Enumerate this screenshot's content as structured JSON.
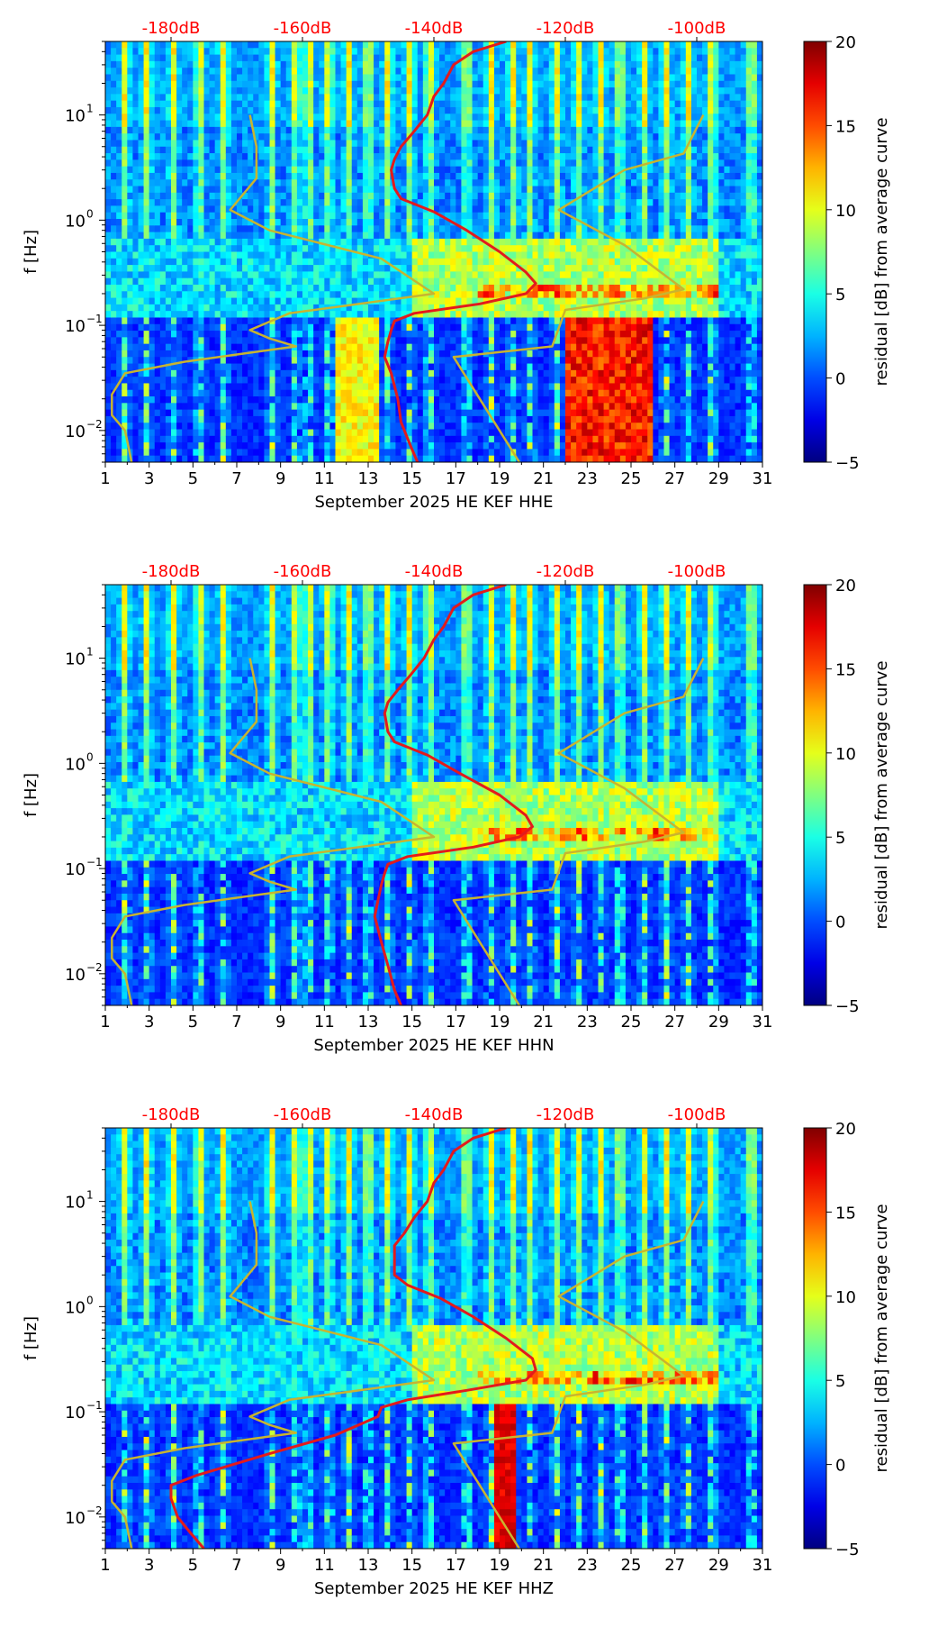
{
  "figure": {
    "colors": {
      "db_axis": "#ff0000",
      "psd_curve": "#e31a1c",
      "noise_model": "#c8b430",
      "axis": "#000000",
      "text": "#000000"
    }
  },
  "chart_data": [
    {
      "type": "heatmap",
      "xlabel": "September 2025 HE KEF  HHE",
      "ylabel": "f [Hz]",
      "x_ticks": [
        "1",
        "3",
        "5",
        "7",
        "9",
        "11",
        "13",
        "15",
        "17",
        "19",
        "21",
        "23",
        "25",
        "27",
        "29",
        "31"
      ],
      "x_range": [
        1,
        31
      ],
      "y_scale": "log",
      "y_range": [
        0.005,
        50
      ],
      "y_ticks": [
        0.01,
        0.1,
        1,
        10
      ],
      "y_tick_labels": [
        "10",
        "10",
        "10",
        "10"
      ],
      "y_tick_exponents": [
        "−2",
        "−1",
        "0",
        "1"
      ],
      "top_axis": {
        "labels": [
          "-180dB",
          "-160dB",
          "-140dB",
          "-120dB",
          "-100dB"
        ],
        "values": [
          -180,
          -160,
          -140,
          -120,
          -100
        ],
        "range": [
          -190,
          -90
        ],
        "color": "#ff0000"
      },
      "colorbar": {
        "label": "residual [dB] from average curve",
        "ticks": [
          "20",
          "15",
          "10",
          "5",
          "0",
          "−5"
        ],
        "tick_values": [
          20,
          15,
          10,
          5,
          0,
          -5
        ],
        "range": [
          -5,
          20
        ],
        "colormap": "jet"
      },
      "series": [
        {
          "color": "#e31a1c",
          "units": "dB",
          "points": [
            [
              -129,
              50
            ],
            [
              -134,
              40
            ],
            [
              -137,
              30
            ],
            [
              -138.5,
              20
            ],
            [
              -140,
              15
            ],
            [
              -141,
              10
            ],
            [
              -143,
              7
            ],
            [
              -145,
              5
            ],
            [
              -146,
              3.8
            ],
            [
              -146.5,
              3
            ],
            [
              -146,
              2
            ],
            [
              -145,
              1.6
            ],
            [
              -140,
              1.2
            ],
            [
              -135,
              0.8
            ],
            [
              -130,
              0.5
            ],
            [
              -126,
              0.32
            ],
            [
              -124.5,
              0.25
            ],
            [
              -126,
              0.2
            ],
            [
              -133,
              0.16
            ],
            [
              -143,
              0.13
            ],
            [
              -146,
              0.11
            ],
            [
              -146.5,
              0.09
            ],
            [
              -147,
              0.07
            ],
            [
              -147.5,
              0.05
            ],
            [
              -146.5,
              0.035
            ],
            [
              -145.5,
              0.02
            ],
            [
              -145,
              0.012
            ],
            [
              -143.5,
              0.007
            ],
            [
              -142.5,
              0.005
            ]
          ]
        },
        {
          "color": "#c8b430",
          "units": "dB",
          "points": [
            [
              -168,
              10
            ],
            [
              -167,
              5
            ],
            [
              -167,
              2.5
            ],
            [
              -171,
              1.25
            ],
            [
              -165,
              0.8
            ],
            [
              -148,
              0.43
            ],
            [
              -140,
              0.2
            ],
            [
              -162,
              0.13
            ],
            [
              -168,
              0.09
            ],
            [
              -165,
              0.075
            ],
            [
              -161,
              0.063
            ],
            [
              -178,
              0.045
            ],
            [
              -187,
              0.035
            ],
            [
              -189,
              0.022
            ],
            [
              -189,
              0.014
            ],
            [
              -187,
              0.01
            ],
            [
              -186,
              0.005
            ]
          ]
        },
        {
          "color": "#c8b430",
          "units": "dB",
          "points": [
            [
              -99,
              10
            ],
            [
              -102,
              4.3
            ],
            [
              -111,
              3
            ],
            [
              -121,
              1.25
            ],
            [
              -111,
              0.58
            ],
            [
              -102,
              0.22
            ],
            [
              -108,
              0.18
            ],
            [
              -120,
              0.14
            ],
            [
              -122,
              0.063
            ],
            [
              -137,
              0.05
            ],
            [
              -127,
              0.005
            ]
          ]
        }
      ]
    },
    {
      "type": "heatmap",
      "xlabel": "September 2025 HE KEF  HHN",
      "ylabel": "f [Hz]",
      "x_ticks": [
        "1",
        "3",
        "5",
        "7",
        "9",
        "11",
        "13",
        "15",
        "17",
        "19",
        "21",
        "23",
        "25",
        "27",
        "29",
        "31"
      ],
      "x_range": [
        1,
        31
      ],
      "y_scale": "log",
      "y_range": [
        0.005,
        50
      ],
      "y_ticks": [
        0.01,
        0.1,
        1,
        10
      ],
      "y_tick_labels": [
        "10",
        "10",
        "10",
        "10"
      ],
      "y_tick_exponents": [
        "−2",
        "−1",
        "0",
        "1"
      ],
      "top_axis": {
        "labels": [
          "-180dB",
          "-160dB",
          "-140dB",
          "-120dB",
          "-100dB"
        ],
        "values": [
          -180,
          -160,
          -140,
          -120,
          -100
        ],
        "range": [
          -190,
          -90
        ],
        "color": "#ff0000"
      },
      "colorbar": {
        "label": "residual [dB] from average curve",
        "ticks": [
          "20",
          "15",
          "10",
          "5",
          "0",
          "−5"
        ],
        "tick_values": [
          20,
          15,
          10,
          5,
          0,
          -5
        ],
        "range": [
          -5,
          20
        ],
        "colormap": "jet"
      },
      "series": [
        {
          "color": "#e31a1c",
          "units": "dB",
          "points": [
            [
              -129,
              50
            ],
            [
              -134,
              40
            ],
            [
              -137,
              30
            ],
            [
              -138.5,
              20
            ],
            [
              -140,
              15
            ],
            [
              -141.5,
              10
            ],
            [
              -143.5,
              7
            ],
            [
              -145.5,
              5
            ],
            [
              -147,
              3.8
            ],
            [
              -147.5,
              3
            ],
            [
              -147,
              2
            ],
            [
              -146,
              1.6
            ],
            [
              -141,
              1.2
            ],
            [
              -136,
              0.8
            ],
            [
              -130,
              0.5
            ],
            [
              -126,
              0.32
            ],
            [
              -125,
              0.25
            ],
            [
              -127,
              0.2
            ],
            [
              -134,
              0.16
            ],
            [
              -144,
              0.13
            ],
            [
              -147,
              0.11
            ],
            [
              -147.5,
              0.09
            ],
            [
              -148,
              0.07
            ],
            [
              -148.5,
              0.05
            ],
            [
              -149,
              0.035
            ],
            [
              -148,
              0.02
            ],
            [
              -147,
              0.012
            ],
            [
              -146,
              0.007
            ],
            [
              -145,
              0.005
            ]
          ]
        },
        {
          "color": "#c8b430",
          "units": "dB",
          "points": [
            [
              -168,
              10
            ],
            [
              -167,
              5
            ],
            [
              -167,
              2.5
            ],
            [
              -171,
              1.25
            ],
            [
              -165,
              0.8
            ],
            [
              -148,
              0.43
            ],
            [
              -140,
              0.2
            ],
            [
              -162,
              0.13
            ],
            [
              -168,
              0.09
            ],
            [
              -165,
              0.075
            ],
            [
              -161,
              0.063
            ],
            [
              -178,
              0.045
            ],
            [
              -187,
              0.035
            ],
            [
              -189,
              0.022
            ],
            [
              -189,
              0.014
            ],
            [
              -187,
              0.01
            ],
            [
              -186,
              0.005
            ]
          ]
        },
        {
          "color": "#c8b430",
          "units": "dB",
          "points": [
            [
              -99,
              10
            ],
            [
              -102,
              4.3
            ],
            [
              -111,
              3
            ],
            [
              -121,
              1.25
            ],
            [
              -111,
              0.58
            ],
            [
              -102,
              0.22
            ],
            [
              -108,
              0.18
            ],
            [
              -120,
              0.14
            ],
            [
              -122,
              0.063
            ],
            [
              -137,
              0.05
            ],
            [
              -127,
              0.005
            ]
          ]
        }
      ]
    },
    {
      "type": "heatmap",
      "xlabel": "September 2025 HE KEF  HHZ",
      "ylabel": "f [Hz]",
      "x_ticks": [
        "1",
        "3",
        "5",
        "7",
        "9",
        "11",
        "13",
        "15",
        "17",
        "19",
        "21",
        "23",
        "25",
        "27",
        "29",
        "31"
      ],
      "x_range": [
        1,
        31
      ],
      "y_scale": "log",
      "y_range": [
        0.005,
        50
      ],
      "y_ticks": [
        0.01,
        0.1,
        1,
        10
      ],
      "y_tick_labels": [
        "10",
        "10",
        "10",
        "10"
      ],
      "y_tick_exponents": [
        "−2",
        "−1",
        "0",
        "1"
      ],
      "top_axis": {
        "labels": [
          "-180dB",
          "-160dB",
          "-140dB",
          "-120dB",
          "-100dB"
        ],
        "values": [
          -180,
          -160,
          -140,
          -120,
          -100
        ],
        "range": [
          -190,
          -90
        ],
        "color": "#ff0000"
      },
      "colorbar": {
        "label": "residual [dB] from average curve",
        "ticks": [
          "20",
          "15",
          "10",
          "5",
          "0",
          "−5"
        ],
        "tick_values": [
          20,
          15,
          10,
          5,
          0,
          -5
        ],
        "range": [
          -5,
          20
        ],
        "colormap": "jet"
      },
      "series": [
        {
          "color": "#e31a1c",
          "units": "dB",
          "points": [
            [
              -129,
              50
            ],
            [
              -134,
              40
            ],
            [
              -137,
              30
            ],
            [
              -138.5,
              20
            ],
            [
              -140,
              15
            ],
            [
              -141,
              10
            ],
            [
              -143,
              7
            ],
            [
              -144.5,
              5
            ],
            [
              -146,
              3.8
            ],
            [
              -146,
              3
            ],
            [
              -146,
              2
            ],
            [
              -144,
              1.6
            ],
            [
              -139,
              1.2
            ],
            [
              -134,
              0.8
            ],
            [
              -129,
              0.5
            ],
            [
              -125,
              0.32
            ],
            [
              -124.5,
              0.25
            ],
            [
              -126,
              0.2
            ],
            [
              -135,
              0.16
            ],
            [
              -144,
              0.13
            ],
            [
              -148,
              0.11
            ],
            [
              -148.5,
              0.09
            ],
            [
              -155,
              0.06
            ],
            [
              -165,
              0.04
            ],
            [
              -176,
              0.025
            ],
            [
              -180,
              0.02
            ],
            [
              -180,
              0.015
            ],
            [
              -179,
              0.01
            ],
            [
              -177,
              0.007
            ],
            [
              -175,
              0.005
            ]
          ]
        },
        {
          "color": "#c8b430",
          "units": "dB",
          "points": [
            [
              -168,
              10
            ],
            [
              -167,
              5
            ],
            [
              -167,
              2.5
            ],
            [
              -171,
              1.25
            ],
            [
              -165,
              0.8
            ],
            [
              -148,
              0.43
            ],
            [
              -140,
              0.2
            ],
            [
              -162,
              0.13
            ],
            [
              -168,
              0.09
            ],
            [
              -165,
              0.075
            ],
            [
              -161,
              0.063
            ],
            [
              -178,
              0.045
            ],
            [
              -187,
              0.035
            ],
            [
              -189,
              0.022
            ],
            [
              -189,
              0.014
            ],
            [
              -187,
              0.01
            ],
            [
              -186,
              0.005
            ]
          ]
        },
        {
          "color": "#c8b430",
          "units": "dB",
          "points": [
            [
              -99,
              10
            ],
            [
              -102,
              4.3
            ],
            [
              -111,
              3
            ],
            [
              -121,
              1.25
            ],
            [
              -111,
              0.58
            ],
            [
              -102,
              0.22
            ],
            [
              -108,
              0.18
            ],
            [
              -120,
              0.14
            ],
            [
              -122,
              0.063
            ],
            [
              -137,
              0.05
            ],
            [
              -127,
              0.005
            ]
          ]
        }
      ]
    }
  ]
}
